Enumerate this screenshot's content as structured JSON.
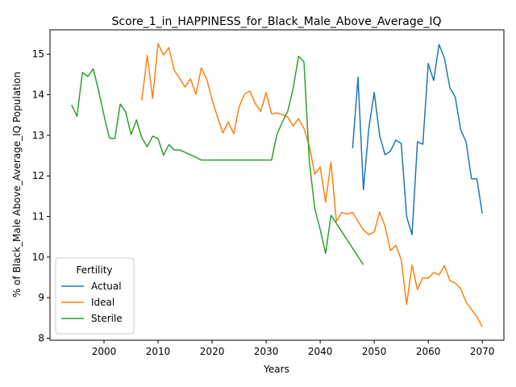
{
  "chart_data": {
    "type": "line",
    "title": "Score_1_in_HAPPINESS_for_Black_Male_Above_Average_IQ",
    "xlabel": "Years",
    "ylabel": "% of Black_Male Above_Average_IQ Population",
    "xlim": [
      1990,
      2074
    ],
    "ylim": [
      7.95,
      15.6
    ],
    "xticks": [
      2000,
      2010,
      2020,
      2030,
      2040,
      2050,
      2060,
      2070
    ],
    "yticks": [
      8,
      9,
      10,
      11,
      12,
      13,
      14,
      15
    ],
    "grid": false,
    "legend": {
      "title": "Fertility",
      "placement": "lower left"
    },
    "series": [
      {
        "name": "Actual",
        "color": "#1f77b4",
        "points": [
          [
            2046,
            12.68
          ],
          [
            2047,
            14.43
          ],
          [
            2048,
            11.66
          ],
          [
            2049,
            13.17
          ],
          [
            2050,
            14.06
          ],
          [
            2051,
            13.0
          ],
          [
            2052,
            12.52
          ],
          [
            2053,
            12.61
          ],
          [
            2054,
            12.88
          ],
          [
            2055,
            12.8
          ],
          [
            2056,
            11.0
          ],
          [
            2057,
            10.55
          ],
          [
            2058,
            12.84
          ],
          [
            2059,
            12.78
          ],
          [
            2060,
            14.77
          ],
          [
            2061,
            14.35
          ],
          [
            2062,
            15.24
          ],
          [
            2063,
            14.9
          ],
          [
            2064,
            14.17
          ],
          [
            2065,
            13.94
          ],
          [
            2066,
            13.14
          ],
          [
            2067,
            12.84
          ],
          [
            2068,
            11.93
          ],
          [
            2069,
            11.93
          ],
          [
            2070,
            11.07
          ]
        ]
      },
      {
        "name": "Ideal",
        "color": "#ff7f0e",
        "points": [
          [
            2007,
            13.86
          ],
          [
            2008,
            14.97
          ],
          [
            2009,
            13.91
          ],
          [
            2010,
            15.26
          ],
          [
            2011,
            14.98
          ],
          [
            2012,
            15.16
          ],
          [
            2013,
            14.6
          ],
          [
            2014,
            14.4
          ],
          [
            2015,
            14.19
          ],
          [
            2016,
            14.39
          ],
          [
            2017,
            14.01
          ],
          [
            2018,
            14.66
          ],
          [
            2019,
            14.39
          ],
          [
            2020,
            13.88
          ],
          [
            2021,
            13.45
          ],
          [
            2022,
            13.06
          ],
          [
            2023,
            13.33
          ],
          [
            2024,
            13.04
          ],
          [
            2025,
            13.7
          ],
          [
            2026,
            14.02
          ],
          [
            2027,
            14.09
          ],
          [
            2028,
            13.78
          ],
          [
            2029,
            13.59
          ],
          [
            2030,
            14.05
          ],
          [
            2031,
            13.53
          ],
          [
            2032,
            13.55
          ],
          [
            2033,
            13.51
          ],
          [
            2034,
            13.45
          ],
          [
            2035,
            13.23
          ],
          [
            2036,
            13.41
          ],
          [
            2037,
            13.17
          ],
          [
            2038,
            12.74
          ],
          [
            2039,
            12.04
          ],
          [
            2040,
            12.22
          ],
          [
            2041,
            11.35
          ],
          [
            2042,
            12.34
          ],
          [
            2043,
            10.88
          ],
          [
            2044,
            11.1
          ],
          [
            2045,
            11.06
          ],
          [
            2046,
            11.1
          ],
          [
            2047,
            10.88
          ],
          [
            2048,
            10.67
          ],
          [
            2049,
            10.55
          ],
          [
            2050,
            10.62
          ],
          [
            2051,
            11.11
          ],
          [
            2052,
            10.76
          ],
          [
            2053,
            10.16
          ],
          [
            2054,
            10.29
          ],
          [
            2055,
            9.94
          ],
          [
            2056,
            8.83
          ],
          [
            2057,
            9.8
          ],
          [
            2058,
            9.2
          ],
          [
            2059,
            9.49
          ],
          [
            2060,
            9.48
          ],
          [
            2061,
            9.62
          ],
          [
            2062,
            9.56
          ],
          [
            2063,
            9.79
          ],
          [
            2064,
            9.42
          ],
          [
            2065,
            9.36
          ],
          [
            2066,
            9.22
          ],
          [
            2067,
            8.89
          ],
          [
            2068,
            8.71
          ],
          [
            2069,
            8.53
          ],
          [
            2070,
            8.28
          ]
        ]
      },
      {
        "name": "Sterile",
        "color": "#2ca02c",
        "points": [
          [
            1994,
            13.75
          ],
          [
            1995,
            13.47
          ],
          [
            1996,
            14.55
          ],
          [
            1997,
            14.45
          ],
          [
            1998,
            14.64
          ],
          [
            1999,
            14.1
          ],
          [
            2000,
            13.49
          ],
          [
            2001,
            12.93
          ],
          [
            2002,
            12.92
          ],
          [
            2003,
            13.77
          ],
          [
            2004,
            13.58
          ],
          [
            2005,
            13.02
          ],
          [
            2006,
            13.38
          ],
          [
            2007,
            12.94
          ],
          [
            2008,
            12.72
          ],
          [
            2009,
            12.98
          ],
          [
            2010,
            12.92
          ],
          [
            2011,
            12.51
          ],
          [
            2012,
            12.77
          ],
          [
            2013,
            12.64
          ],
          [
            2014,
            12.64
          ],
          [
            2015,
            12.58
          ],
          [
            2016,
            12.52
          ],
          [
            2017,
            12.46
          ],
          [
            2018,
            12.39
          ],
          [
            2019,
            12.39
          ],
          [
            2020,
            12.39
          ],
          [
            2025,
            12.39
          ],
          [
            2030,
            12.39
          ],
          [
            2031,
            12.39
          ],
          [
            2032,
            13.02
          ],
          [
            2033,
            13.33
          ],
          [
            2034,
            13.59
          ],
          [
            2035,
            14.16
          ],
          [
            2036,
            14.95
          ],
          [
            2037,
            14.81
          ],
          [
            2038,
            12.35
          ],
          [
            2039,
            11.2
          ],
          [
            2040,
            10.68
          ],
          [
            2041,
            10.09
          ],
          [
            2042,
            11.03
          ],
          [
            2043,
            10.83
          ],
          [
            2048,
            9.81
          ]
        ]
      }
    ]
  }
}
